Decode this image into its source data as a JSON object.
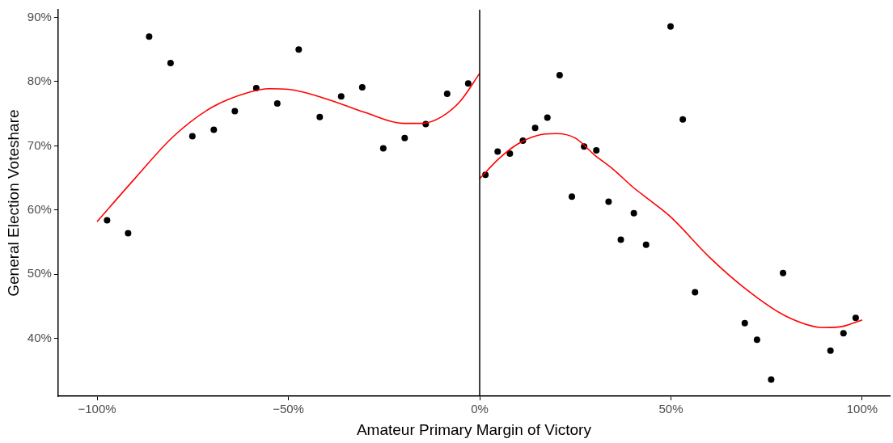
{
  "chart_data": {
    "type": "scatter",
    "xlabel": "Amateur Primary Margin of Victory",
    "ylabel": "General Election Voteshare",
    "xlim": [
      -110.2,
      107.2
    ],
    "ylim": [
      31,
      91.2
    ],
    "xticks": [
      {
        "value": -100,
        "label": "−100%"
      },
      {
        "value": -50,
        "label": "−50%"
      },
      {
        "value": 0,
        "label": "0%"
      },
      {
        "value": 50,
        "label": "50%"
      },
      {
        "value": 100,
        "label": "100%"
      }
    ],
    "yticks": [
      {
        "value": 40,
        "label": "40%"
      },
      {
        "value": 50,
        "label": "50%"
      },
      {
        "value": 60,
        "label": "60%"
      },
      {
        "value": 70,
        "label": "70%"
      },
      {
        "value": 80,
        "label": "80%"
      },
      {
        "value": 90,
        "label": "90%"
      }
    ],
    "grid": false,
    "legend": false,
    "marker": "circle",
    "ref_lines": [
      {
        "axis": "x",
        "value": 0,
        "color": "#000000"
      }
    ],
    "series": [
      {
        "type": "scatter",
        "color": "#000000",
        "x": [
          -97.4,
          -91.9,
          -86.4,
          -80.8,
          -75.1,
          -69.5,
          -64.0,
          -58.4,
          -52.9,
          -47.3,
          -41.8,
          -36.2,
          -30.7,
          -25.2,
          -19.6,
          -14.1,
          -8.5,
          -3.0,
          1.5,
          4.7,
          7.9,
          11.3,
          14.5,
          17.7,
          20.9,
          24.1,
          27.3,
          30.5,
          33.7,
          36.9,
          40.3,
          43.5,
          49.9,
          53.1,
          56.3,
          69.3,
          72.5,
          76.2,
          79.3,
          91.7,
          95.1,
          98.3
        ],
        "values": [
          58.4,
          56.4,
          87.0,
          82.9,
          71.5,
          72.5,
          75.4,
          79.0,
          76.6,
          85.0,
          74.5,
          77.7,
          79.1,
          69.6,
          71.2,
          73.4,
          78.1,
          79.7,
          65.5,
          69.1,
          68.8,
          70.8,
          72.8,
          74.4,
          81.0,
          62.1,
          69.9,
          69.3,
          61.3,
          55.4,
          59.5,
          54.6,
          88.6,
          74.1,
          47.2,
          42.4,
          39.8,
          33.6,
          50.2,
          38.1,
          40.8,
          43.2
        ]
      },
      {
        "type": "line",
        "color": "#ff0000",
        "marker": "none",
        "x": [
          -100,
          -90,
          -80,
          -70,
          -60,
          -55,
          -50,
          -40,
          -30,
          -20,
          -15,
          -10,
          -5,
          0
        ],
        "values": [
          58.2,
          65,
          71.5,
          76,
          78.4,
          78.9,
          78.8,
          77.3,
          75.2,
          73.5,
          73.5,
          74.5,
          77,
          81.3
        ]
      },
      {
        "type": "line",
        "color": "#ff0000",
        "marker": "none",
        "x": [
          0,
          5,
          10,
          15,
          20,
          25,
          30,
          35,
          40,
          45,
          50,
          60,
          70,
          80,
          90,
          95,
          100
        ],
        "values": [
          64.9,
          68,
          70.3,
          71.6,
          71.9,
          71.2,
          68.6,
          66.3,
          63.6,
          61.3,
          58.9,
          52.7,
          47.5,
          43.5,
          41.7,
          41.9,
          42.9
        ]
      }
    ]
  }
}
